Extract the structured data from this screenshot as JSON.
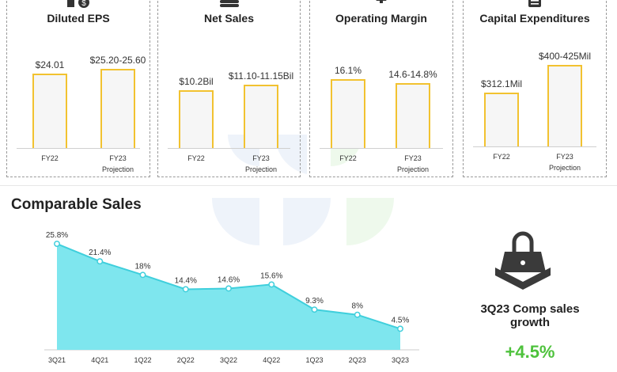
{
  "kpi_cards": [
    {
      "title": "Diluted EPS",
      "icon": "money-bag-icon",
      "bars": [
        {
          "category": "FY22",
          "label": "$24.01",
          "value": 24.01
        },
        {
          "category": "FY23 Projection",
          "label": "$25.20-25.60",
          "value": 25.4
        }
      ]
    },
    {
      "title": "Net Sales",
      "icon": "coin-stack-icon",
      "bars": [
        {
          "category": "FY22",
          "label": "$10.2Bil",
          "value": 10.2
        },
        {
          "category": "FY23 Projection",
          "label": "$11.10-11.15Bil",
          "value": 11.125
        }
      ]
    },
    {
      "title": "Operating Margin",
      "icon": "gear-icon",
      "bars": [
        {
          "category": "FY22",
          "label": "16.1%",
          "value": 16.1
        },
        {
          "category": "FY23 Projection",
          "label": "14.6-14.8%",
          "value": 14.7
        }
      ]
    },
    {
      "title": "Capital Expenditures",
      "icon": "document-icon",
      "bars": [
        {
          "category": "FY22",
          "label": "$312.1Mil",
          "value": 312.1
        },
        {
          "category": "FY23 Projection",
          "label": "$400-425Mil",
          "value": 412.5
        }
      ]
    }
  ],
  "comparable_sales": {
    "title": "Comparable Sales"
  },
  "chart_data": {
    "type": "area",
    "title": "Comparable Sales",
    "categories": [
      "3Q21",
      "4Q21",
      "1Q22",
      "2Q22",
      "3Q22",
      "4Q22",
      "1Q23",
      "2Q23",
      "3Q23"
    ],
    "values": [
      25.8,
      21.4,
      18,
      14.4,
      14.6,
      15.6,
      9.3,
      8,
      4.5
    ],
    "labels": [
      "25.8%",
      "21.4%",
      "18%",
      "14.4%",
      "14.6%",
      "15.6%",
      "9.3%",
      "8%",
      "4.5%"
    ],
    "ylim": [
      0,
      27
    ],
    "color": "#7ee6ee",
    "line_color": "#3fcfdc"
  },
  "highlight": {
    "title": "3Q23 Comp sales growth",
    "value": "+4.5%",
    "color": "#4ec23c",
    "icon": "shopping-bag-icon"
  },
  "colors": {
    "bar_border": "#f2c230",
    "bar_fill": "#f6f6f6"
  }
}
